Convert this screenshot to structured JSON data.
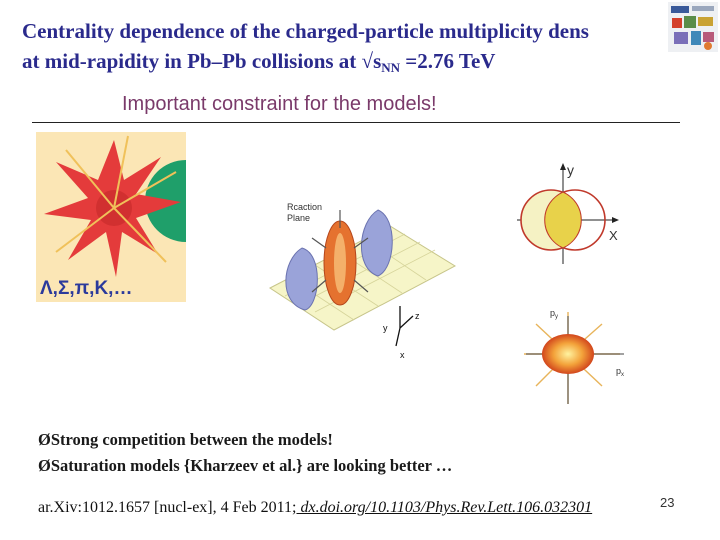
{
  "title": {
    "line1": "Centrality dependence of the charged-particle multiplicity dens",
    "line2_prefix": "at mid-rapidity in Pb–Pb collisions at √s",
    "line2_sub": "NN",
    "line2_suffix": " =2.76 TeV"
  },
  "subtitle": "Important constraint for the models!",
  "figure": {
    "particles_label": "Λ,Σ,π,K,…",
    "reaction_plane_label_1": "Rcaction",
    "reaction_plane_label_2": "Plane",
    "axis_y": "y",
    "axis_z": "z",
    "axis_x": "x",
    "overlap_axis_y": "y",
    "overlap_axis_x": "X",
    "momentum_axis_py": "p",
    "momentum_axis_px": "p",
    "sub_y": "y",
    "sub_x": "x"
  },
  "bullets": [
    "ØStrong competition between the models!",
    "ØSaturation models {Kharzeev et al.} are looking better …"
  ],
  "reference": {
    "text": "ar.Xiv:1012.1657 [nucl-ex], 4 Feb 2011;",
    "link": " dx.doi.org/10.1103/Phys.Rev.Lett.106.032301"
  },
  "page_number": "23"
}
